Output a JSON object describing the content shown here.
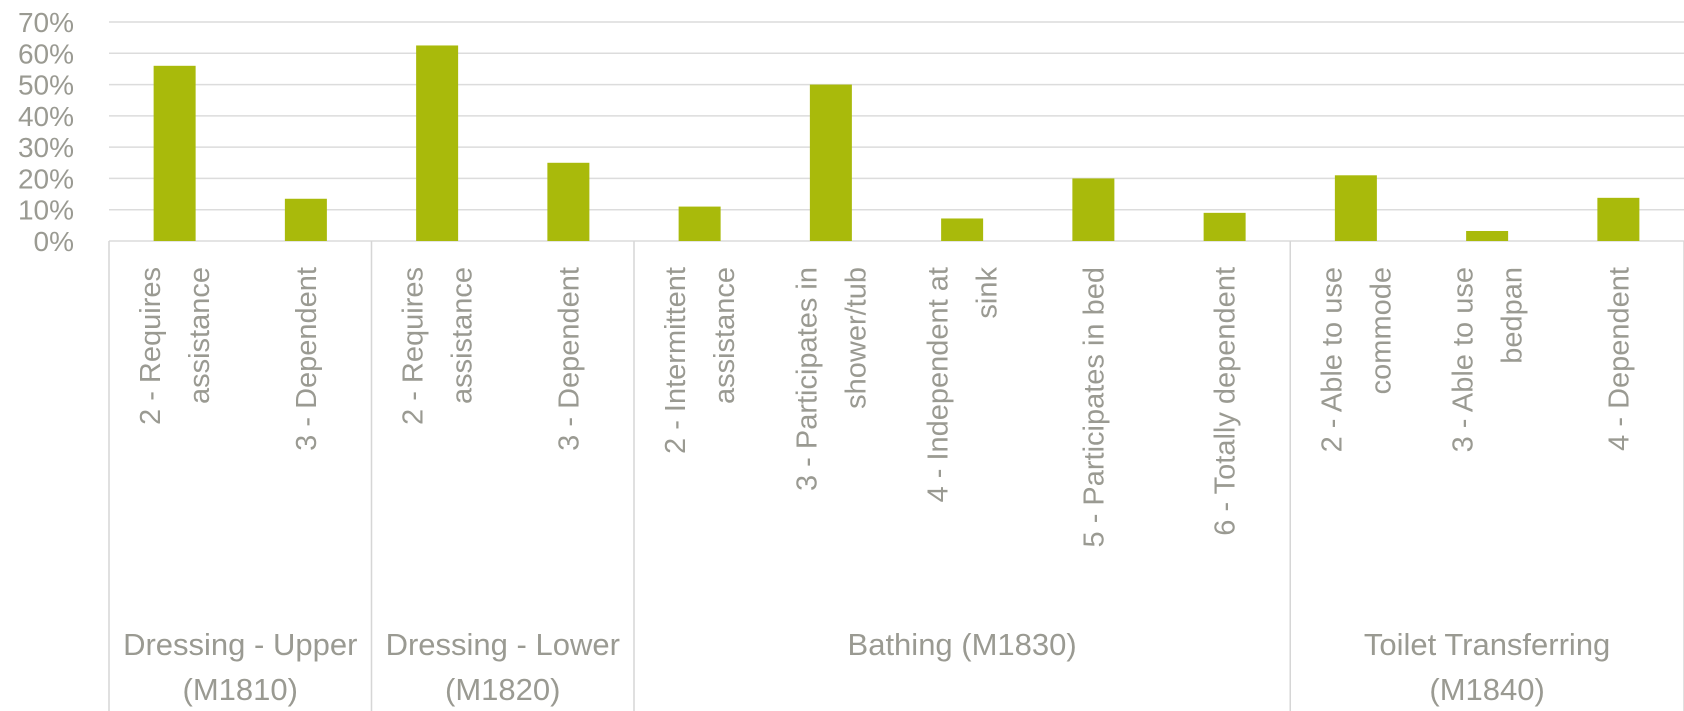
{
  "chart_data": {
    "type": "bar",
    "title": "",
    "xlabel": "",
    "ylabel": "",
    "ylim": [
      0,
      0.7
    ],
    "yticks": [
      "0%",
      "10%",
      "20%",
      "30%",
      "40%",
      "50%",
      "60%",
      "70%"
    ],
    "grid": true,
    "bar_color": "#a9ba0b",
    "groups": [
      {
        "name": "Dressing - Upper (M1810)",
        "label_lines": [
          "Dressing - Upper",
          "(M1810)"
        ],
        "count": 2
      },
      {
        "name": "Dressing - Lower (M1820)",
        "label_lines": [
          "Dressing - Lower",
          "(M1820)"
        ],
        "count": 2
      },
      {
        "name": "Bathing (M1830)",
        "label_lines": [
          "Bathing (M1830)"
        ],
        "count": 5
      },
      {
        "name": "Toilet Transferring (M1840)",
        "label_lines": [
          "Toilet Transferring",
          "(M1840)"
        ],
        "count": 3
      }
    ],
    "categories": [
      {
        "label_lines": [
          "2 - Requires",
          "assistance"
        ],
        "value": 0.56
      },
      {
        "label_lines": [
          "3 - Dependent"
        ],
        "value": 0.135
      },
      {
        "label_lines": [
          "2 - Requires",
          "assistance"
        ],
        "value": 0.625
      },
      {
        "label_lines": [
          "3 - Dependent"
        ],
        "value": 0.25
      },
      {
        "label_lines": [
          "2 - Intermittent",
          "assistance"
        ],
        "value": 0.11
      },
      {
        "label_lines": [
          "3 - Participates in",
          "shower/tub"
        ],
        "value": 0.5
      },
      {
        "label_lines": [
          "4 - Independent at",
          "sink"
        ],
        "value": 0.072
      },
      {
        "label_lines": [
          "5 - Participates in bed"
        ],
        "value": 0.2
      },
      {
        "label_lines": [
          "6 - Totally dependent"
        ],
        "value": 0.09
      },
      {
        "label_lines": [
          "2 - Able to use",
          "commode"
        ],
        "value": 0.21
      },
      {
        "label_lines": [
          "3 - Able to use",
          "bedpan"
        ],
        "value": 0.032
      },
      {
        "label_lines": [
          "4 - Dependent"
        ],
        "value": 0.138
      }
    ]
  }
}
